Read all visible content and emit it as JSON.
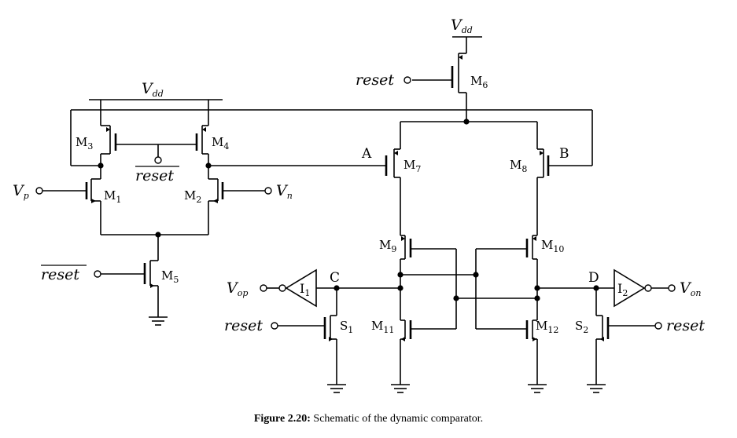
{
  "labels": {
    "vdd_main": {
      "base": "V",
      "sub": "dd"
    },
    "vdd_latch": {
      "base": "V",
      "sub": "dd"
    },
    "reset_top": "reset",
    "reset_s1": "reset",
    "reset_s2": "reset",
    "reset_bar_pre": "reset",
    "reset_bar_m5": "reset",
    "vp": {
      "base": "V",
      "sub": "p"
    },
    "vn": {
      "base": "V",
      "sub": "n"
    },
    "vop": {
      "base": "V",
      "sub": "op"
    },
    "von": {
      "base": "V",
      "sub": "on"
    },
    "node_a": "A",
    "node_b": "B",
    "node_c": "C",
    "node_d": "D"
  },
  "transistors": [
    {
      "id": "m1",
      "base": "M",
      "sub": "1"
    },
    {
      "id": "m2",
      "base": "M",
      "sub": "2"
    },
    {
      "id": "m3",
      "base": "M",
      "sub": "3"
    },
    {
      "id": "m4",
      "base": "M",
      "sub": "4"
    },
    {
      "id": "m5",
      "base": "M",
      "sub": "5"
    },
    {
      "id": "m6",
      "base": "M",
      "sub": "6"
    },
    {
      "id": "m7",
      "base": "M",
      "sub": "7"
    },
    {
      "id": "m8",
      "base": "M",
      "sub": "8"
    },
    {
      "id": "m9",
      "base": "M",
      "sub": "9"
    },
    {
      "id": "m10",
      "base": "M",
      "sub": "10"
    },
    {
      "id": "m11",
      "base": "M",
      "sub": "11"
    },
    {
      "id": "m12",
      "base": "M",
      "sub": "12"
    },
    {
      "id": "s1",
      "base": "S",
      "sub": "1"
    },
    {
      "id": "s2",
      "base": "S",
      "sub": "2"
    }
  ],
  "inverters": [
    {
      "id": "i1",
      "base": "I",
      "sub": "1"
    },
    {
      "id": "i2",
      "base": "I",
      "sub": "2"
    }
  ],
  "caption": {
    "label": "Figure 2.20:",
    "text": " Schematic of the dynamic comparator."
  }
}
